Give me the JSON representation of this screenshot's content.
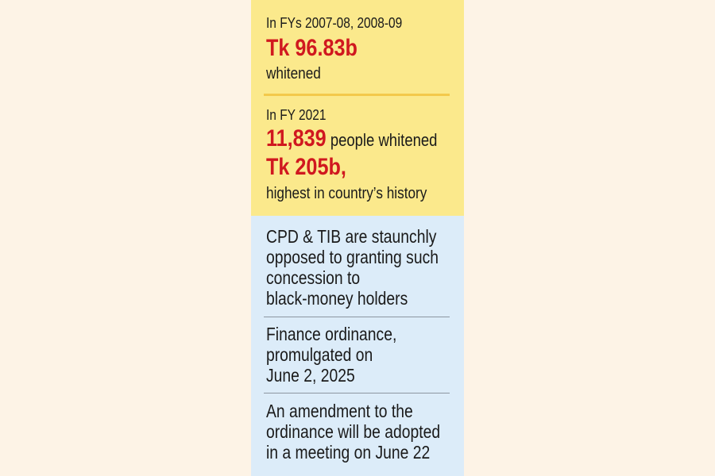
{
  "yellow_box": {
    "section1": {
      "label": "In FYs 2007-08, 2008-09",
      "amount": "Tk 96.83b",
      "note": "whitened"
    },
    "section2": {
      "label": "In FY 2021",
      "count": "11,839",
      "count_suffix": " people whitened",
      "amount": "Tk 205b,",
      "note": "highest in country’s history"
    }
  },
  "blue_box": {
    "item1": [
      "CPD & TIB are staunchly",
      "opposed to granting such",
      "concession to",
      "black-money holders"
    ],
    "item2": [
      "Finance ordinance,",
      "promulgated on",
      "June 2, 2025"
    ],
    "item3": [
      "An amendment to the",
      "ordinance will be adopted",
      "in a meeting on June 22"
    ]
  },
  "colors": {
    "yellow_bg": "#fbe98c",
    "blue_bg": "#dcecf9",
    "highlight_red": "#d0181f",
    "page_bg": "#fdf3e6"
  }
}
